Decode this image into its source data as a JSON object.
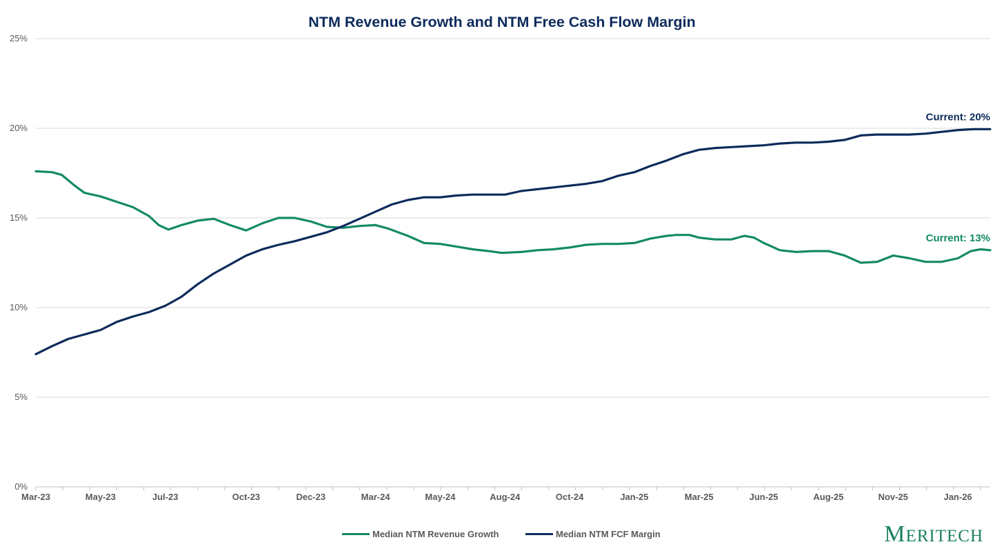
{
  "chart_data": {
    "type": "line",
    "title": "NTM Revenue Growth and NTM Free Cash Flow Margin",
    "y_axis": {
      "min": 0,
      "max": 25,
      "ticks": [
        0,
        5,
        10,
        15,
        20,
        25
      ],
      "tick_labels": [
        "0%",
        "5%",
        "10%",
        "15%",
        "20%",
        "25%"
      ],
      "grid": true
    },
    "x_axis": {
      "tick_labels": [
        "Mar-23",
        "May-23",
        "Jul-23",
        "Oct-23",
        "Dec-23",
        "Mar-24",
        "May-24",
        "Aug-24",
        "Oct-24",
        "Jan-25",
        "Mar-25",
        "Jun-25",
        "Aug-25",
        "Nov-25",
        "Jan-26"
      ],
      "tick_positions": [
        0,
        2,
        4,
        6.5,
        8.5,
        10.5,
        12.5,
        14.5,
        16.5,
        18.5,
        20.5,
        22.5,
        24.5,
        26.5,
        28.5
      ],
      "range": [
        0,
        29.2
      ]
    },
    "legend_position": "bottom",
    "series": [
      {
        "name": "Median NTM Revenue Growth",
        "color": "#138a66",
        "end_label": "Current: 13%",
        "points": [
          [
            0,
            17.6
          ],
          [
            0.5,
            17.55
          ],
          [
            0.8,
            17.4
          ],
          [
            1,
            17.1
          ],
          [
            1.2,
            16.8
          ],
          [
            1.5,
            16.4
          ],
          [
            2,
            16.2
          ],
          [
            2.5,
            15.9
          ],
          [
            3,
            15.6
          ],
          [
            3.5,
            15.1
          ],
          [
            3.8,
            14.6
          ],
          [
            4.1,
            14.35
          ],
          [
            4.5,
            14.6
          ],
          [
            5,
            14.85
          ],
          [
            5.5,
            14.95
          ],
          [
            6,
            14.6
          ],
          [
            6.5,
            14.3
          ],
          [
            7,
            14.7
          ],
          [
            7.5,
            15.0
          ],
          [
            8,
            15.0
          ],
          [
            8.5,
            14.8
          ],
          [
            9,
            14.5
          ],
          [
            9.5,
            14.45
          ],
          [
            10,
            14.55
          ],
          [
            10.5,
            14.6
          ],
          [
            10.9,
            14.4
          ],
          [
            11.5,
            14.0
          ],
          [
            12,
            13.6
          ],
          [
            12.5,
            13.55
          ],
          [
            13,
            13.4
          ],
          [
            13.5,
            13.25
          ],
          [
            14,
            13.15
          ],
          [
            14.4,
            13.05
          ],
          [
            15,
            13.1
          ],
          [
            15.5,
            13.2
          ],
          [
            16,
            13.25
          ],
          [
            16.5,
            13.35
          ],
          [
            17,
            13.5
          ],
          [
            17.5,
            13.55
          ],
          [
            18,
            13.55
          ],
          [
            18.5,
            13.6
          ],
          [
            19,
            13.85
          ],
          [
            19.5,
            14.0
          ],
          [
            19.8,
            14.05
          ],
          [
            20.2,
            14.05
          ],
          [
            20.5,
            13.9
          ],
          [
            21,
            13.8
          ],
          [
            21.5,
            13.8
          ],
          [
            21.9,
            14.0
          ],
          [
            22.2,
            13.9
          ],
          [
            22.5,
            13.6
          ],
          [
            23,
            13.2
          ],
          [
            23.5,
            13.1
          ],
          [
            24,
            13.15
          ],
          [
            24.5,
            13.15
          ],
          [
            25,
            12.9
          ],
          [
            25.5,
            12.5
          ],
          [
            26,
            12.55
          ],
          [
            26.5,
            12.9
          ],
          [
            27,
            12.75
          ],
          [
            27.5,
            12.55
          ],
          [
            28,
            12.55
          ],
          [
            28.5,
            12.75
          ],
          [
            28.9,
            13.15
          ],
          [
            29.2,
            13.25
          ],
          [
            29.5,
            13.2
          ]
        ]
      },
      {
        "name": "Median NTM FCF Margin",
        "color": "#0c2a5b",
        "end_label": "Current: 20%",
        "points": [
          [
            0,
            7.4
          ],
          [
            0.5,
            7.85
          ],
          [
            1,
            8.25
          ],
          [
            1.5,
            8.5
          ],
          [
            2,
            8.75
          ],
          [
            2.5,
            9.2
          ],
          [
            3,
            9.5
          ],
          [
            3.5,
            9.75
          ],
          [
            4,
            10.1
          ],
          [
            4.5,
            10.6
          ],
          [
            5,
            11.3
          ],
          [
            5.5,
            11.9
          ],
          [
            6,
            12.4
          ],
          [
            6.5,
            12.9
          ],
          [
            7,
            13.25
          ],
          [
            7.5,
            13.5
          ],
          [
            8,
            13.7
          ],
          [
            8.5,
            13.95
          ],
          [
            9,
            14.2
          ],
          [
            9.5,
            14.55
          ],
          [
            10,
            14.95
          ],
          [
            10.5,
            15.35
          ],
          [
            11,
            15.75
          ],
          [
            11.5,
            16.0
          ],
          [
            12,
            16.15
          ],
          [
            12.5,
            16.15
          ],
          [
            13,
            16.25
          ],
          [
            13.5,
            16.3
          ],
          [
            14,
            16.3
          ],
          [
            14.5,
            16.3
          ],
          [
            15,
            16.5
          ],
          [
            15.5,
            16.6
          ],
          [
            16,
            16.7
          ],
          [
            16.5,
            16.8
          ],
          [
            17,
            16.9
          ],
          [
            17.5,
            17.05
          ],
          [
            18,
            17.35
          ],
          [
            18.5,
            17.55
          ],
          [
            19,
            17.9
          ],
          [
            19.5,
            18.2
          ],
          [
            20,
            18.55
          ],
          [
            20.5,
            18.8
          ],
          [
            21,
            18.9
          ],
          [
            21.5,
            18.95
          ],
          [
            22,
            19.0
          ],
          [
            22.5,
            19.05
          ],
          [
            23,
            19.15
          ],
          [
            23.5,
            19.2
          ],
          [
            24,
            19.2
          ],
          [
            24.5,
            19.25
          ],
          [
            25,
            19.35
          ],
          [
            25.5,
            19.6
          ],
          [
            26,
            19.65
          ],
          [
            26.5,
            19.65
          ],
          [
            27,
            19.65
          ],
          [
            27.5,
            19.7
          ],
          [
            28,
            19.8
          ],
          [
            28.5,
            19.9
          ],
          [
            29,
            19.95
          ],
          [
            29.5,
            19.95
          ]
        ]
      }
    ]
  },
  "brand": {
    "initial": "M",
    "rest": "ERITECH"
  }
}
